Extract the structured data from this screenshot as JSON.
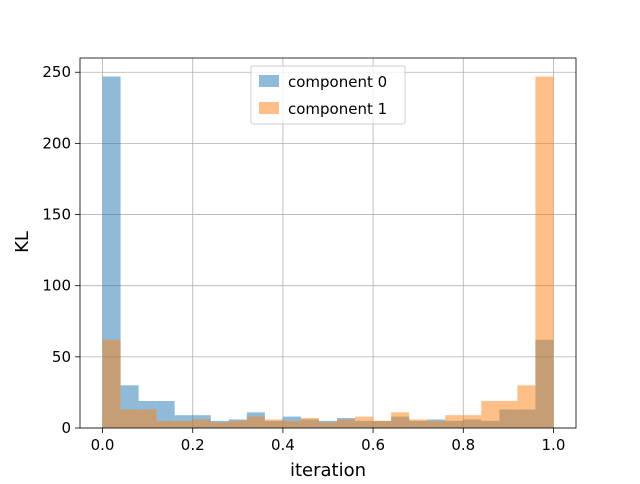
{
  "chart_data": {
    "type": "bar",
    "title": "",
    "xlabel": "iteration",
    "ylabel": "KL",
    "xlim": [
      -0.05,
      1.05
    ],
    "ylim": [
      0,
      260
    ],
    "grid": true,
    "legend_position": "top-center",
    "xticks": [
      0.0,
      0.2,
      0.4,
      0.6,
      0.8,
      1.0
    ],
    "xtick_labels": [
      "0.0",
      "0.2",
      "0.4",
      "0.6",
      "0.8",
      "1.0"
    ],
    "yticks": [
      0,
      50,
      100,
      150,
      200,
      250
    ],
    "ytick_labels": [
      "0",
      "50",
      "100",
      "150",
      "200",
      "250"
    ],
    "bin_edges": [
      0.0,
      0.04,
      0.08,
      0.12,
      0.16,
      0.2,
      0.24,
      0.28,
      0.32,
      0.36,
      0.4,
      0.44,
      0.48,
      0.52,
      0.56,
      0.6,
      0.64,
      0.68,
      0.72,
      0.76,
      0.8,
      0.84,
      0.88,
      0.92,
      0.96,
      1.0
    ],
    "series": [
      {
        "name": "component 0",
        "color": "#1f77b4",
        "opacity": 0.5,
        "values": [
          247,
          30,
          19,
          19,
          9,
          9,
          5,
          6,
          11,
          5,
          8,
          6,
          5,
          7,
          5,
          5,
          8,
          5,
          6,
          5,
          6,
          5,
          13,
          13,
          62
        ]
      },
      {
        "name": "component 1",
        "color": "#ff7f0e",
        "opacity": 0.5,
        "values": [
          62,
          13,
          13,
          5,
          5,
          6,
          4,
          5,
          8,
          6,
          5,
          7,
          4,
          6,
          8,
          5,
          11,
          6,
          5,
          9,
          9,
          19,
          19,
          30,
          247
        ]
      }
    ]
  }
}
